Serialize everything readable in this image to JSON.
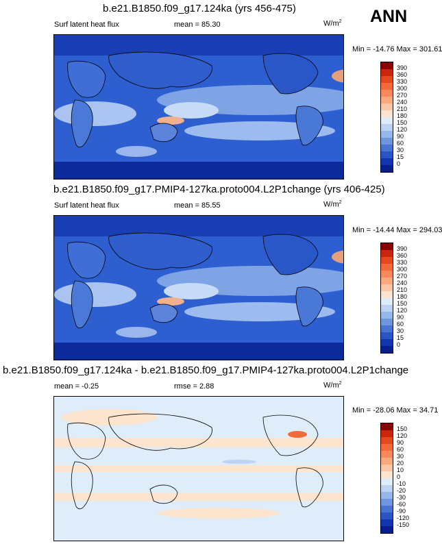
{
  "season": "ANN",
  "panels": [
    {
      "title": "b.e21.B1850.f09_g17.124ka (yrs 456-475)",
      "left_label": "Surf latent heat flux",
      "center_label": "mean =  85.30",
      "units": "W/m",
      "units_sup": "2",
      "minmax": "Min = -14.76 Max = 301.61",
      "colorbar_labels": [
        "390",
        "360",
        "330",
        "300",
        "270",
        "240",
        "210",
        "180",
        "150",
        "120",
        "90",
        "60",
        "30",
        "15",
        "0"
      ],
      "colorbar_colors": [
        "#8b0000",
        "#c9260d",
        "#e5481c",
        "#f2693a",
        "#f7895a",
        "#faa87e",
        "#fcc7a6",
        "#fde4cf",
        "#dfecfa",
        "#bcd3f3",
        "#96b7ea",
        "#6f96de",
        "#4a74d2",
        "#2b55c4",
        "#1236b0",
        "#071f8e"
      ]
    },
    {
      "title": "b.e21.B1850.f09_g17.PMIP4-127ka.proto004.L2P1change (yrs 406-425)",
      "left_label": "Surf latent heat flux",
      "center_label": "mean =  85.55",
      "units": "W/m",
      "units_sup": "2",
      "minmax": "Min = -14.44 Max = 294.03",
      "colorbar_labels": [
        "390",
        "360",
        "330",
        "300",
        "270",
        "240",
        "210",
        "180",
        "150",
        "120",
        "90",
        "60",
        "30",
        "15",
        "0"
      ],
      "colorbar_colors": [
        "#8b0000",
        "#c9260d",
        "#e5481c",
        "#f2693a",
        "#f7895a",
        "#faa87e",
        "#fcc7a6",
        "#fde4cf",
        "#dfecfa",
        "#bcd3f3",
        "#96b7ea",
        "#6f96de",
        "#4a74d2",
        "#2b55c4",
        "#1236b0",
        "#071f8e"
      ]
    },
    {
      "title": "b.e21.B1850.f09_g17.124ka - b.e21.B1850.f09_g17.PMIP4-127ka.proto004.L2P1change",
      "left_label": "mean =  -0.25",
      "center_label": "rmse =   2.88",
      "units": "W/m",
      "units_sup": "2",
      "minmax": "Min = -28.06 Max =  34.71",
      "colorbar_labels": [
        "150",
        "120",
        "90",
        "60",
        "30",
        "20",
        "10",
        "0",
        "-10",
        "-20",
        "-30",
        "-60",
        "-90",
        "-120",
        "-150"
      ],
      "colorbar_colors": [
        "#8b0000",
        "#c9260d",
        "#e5481c",
        "#f2693a",
        "#f7895a",
        "#faa87e",
        "#fcc7a6",
        "#fde4cf",
        "#dfecfa",
        "#bcd3f3",
        "#96b7ea",
        "#6f96de",
        "#4a74d2",
        "#2b55c4",
        "#1236b0",
        "#071f8e"
      ]
    }
  ]
}
